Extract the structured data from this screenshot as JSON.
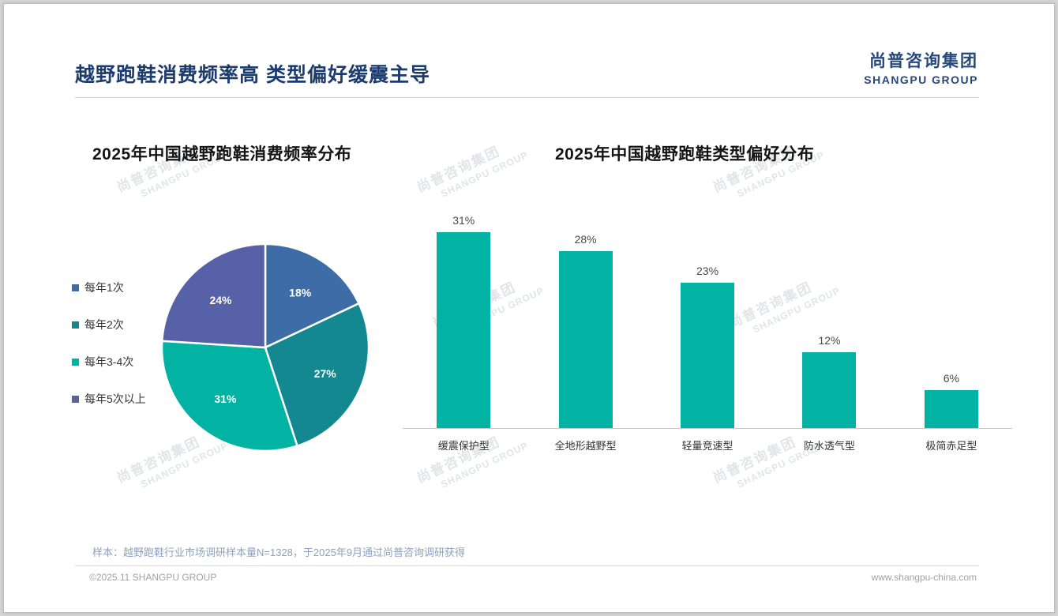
{
  "page": {
    "title": "越野跑鞋消费频率高 类型偏好缓震主导",
    "logo": {
      "cn": "尚普咨询集团",
      "en": "SHANGPU GROUP"
    },
    "watermark": {
      "cn": "尚普咨询集团",
      "en": "SHANGPU GROUP"
    },
    "footnote": "样本：越野跑鞋行业市场调研样本量N=1328，于2025年9月通过尚普咨询调研获得",
    "footer": {
      "left": "©2025.11 SHANGPU GROUP",
      "right": "www.shangpu-china.com"
    }
  },
  "colors": {
    "navy": "#1d3c6e",
    "teal": "#02b3a3",
    "dark_teal": "#148891",
    "steel_blue": "#3d6ca6",
    "slate_purple": "#5661a8"
  },
  "chart_data": [
    {
      "type": "pie",
      "title": "2025年中国越野跑鞋消费频率分布",
      "labels": [
        "每年1次",
        "每年2次",
        "每年3-4次",
        "每年5次以上"
      ],
      "values": [
        18,
        27,
        31,
        24
      ],
      "unit": "%",
      "data_labels": [
        "18%",
        "27%",
        "31%",
        "24%"
      ],
      "colors": [
        "#3d6ca6",
        "#148891",
        "#02b3a3",
        "#5661a8"
      ],
      "legend_position": "left",
      "start_angle_deg": 0,
      "direction": "clockwise"
    },
    {
      "type": "bar",
      "title": "2025年中国越野跑鞋类型偏好分布",
      "categories": [
        "缓震保护型",
        "全地形越野型",
        "轻量竞速型",
        "防水透气型",
        "极简赤足型"
      ],
      "values": [
        31,
        28,
        23,
        12,
        6
      ],
      "unit": "%",
      "data_labels": [
        "31%",
        "28%",
        "23%",
        "12%",
        "6%"
      ],
      "bar_color": "#02b3a3",
      "ylim": [
        0,
        33
      ],
      "grid": false,
      "baseline": true
    }
  ]
}
